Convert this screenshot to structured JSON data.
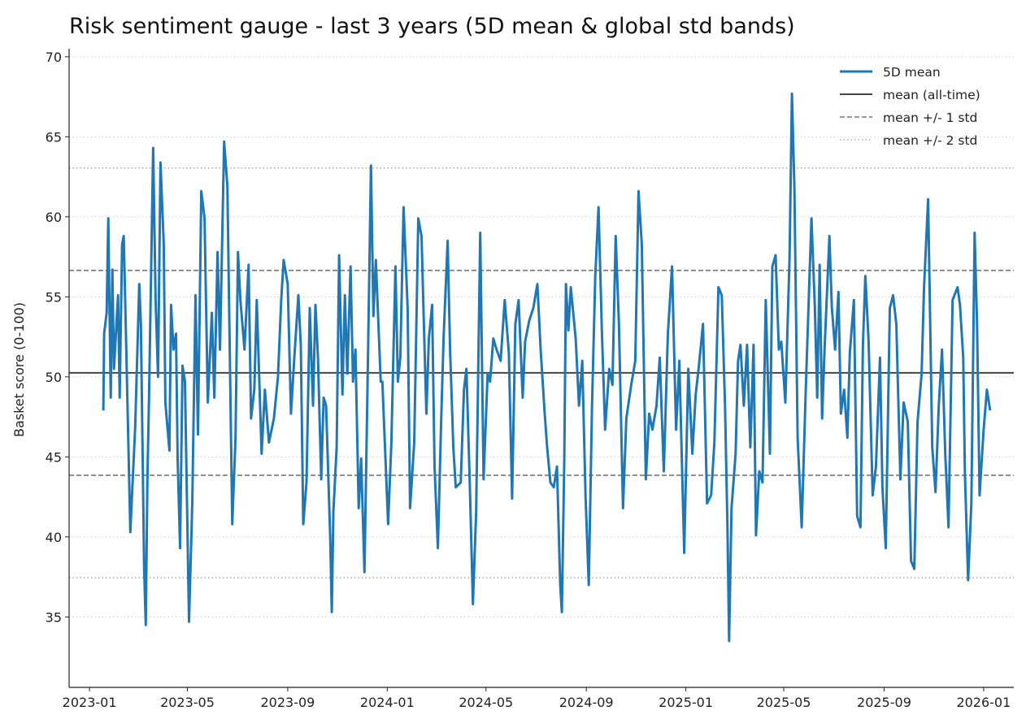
{
  "chart_data": {
    "type": "line",
    "title": "Risk sentiment gauge - last 3 years (5D mean & global std bands)",
    "xlabel": "",
    "ylabel": "Basket score (0-100)",
    "ylim": [
      30.6,
      70.5
    ],
    "xlim": [
      "2022-12-07",
      "2026-02-07"
    ],
    "yticks": [
      35,
      40,
      45,
      50,
      55,
      60,
      65,
      70
    ],
    "ytick_labels": [
      "35",
      "40",
      "45",
      "50",
      "55",
      "60",
      "65",
      "70"
    ],
    "xticks": [
      "2023-01-01",
      "2023-05-01",
      "2023-09-01",
      "2024-01-01",
      "2024-05-01",
      "2024-09-01",
      "2025-01-01",
      "2025-05-01",
      "2025-09-01",
      "2026-01-01"
    ],
    "xtick_labels": [
      "2023-01",
      "2023-05",
      "2023-09",
      "2024-01",
      "2024-05",
      "2024-09",
      "2025-01",
      "2025-05",
      "2025-09",
      "2026-01"
    ],
    "grid": "y-only dotted",
    "legend": "top-right",
    "legend_entries": [
      "5D mean",
      "mean (all-time)",
      "mean +/- 1 std",
      "mean +/- 2 std"
    ],
    "reference_lines": {
      "mean": 50.25,
      "std": 6.4
    },
    "colors": {
      "series": "#1f77b4",
      "mean": "#444444",
      "std1": "#777777",
      "std2": "#aaaaaa",
      "grid": "#cccccc"
    },
    "series": [
      {
        "name": "5D mean",
        "x": [
          "2023-01-18",
          "2023-01-19",
          "2023-01-22",
          "2023-01-24",
          "2023-01-27",
          "2023-01-29",
          "2023-01-31",
          "2023-02-03",
          "2023-02-05",
          "2023-02-07",
          "2023-02-10",
          "2023-02-12",
          "2023-02-14",
          "2023-02-20",
          "2023-02-26",
          "2023-03-03",
          "2023-03-05",
          "2023-03-09",
          "2023-03-11",
          "2023-03-13",
          "2023-03-15",
          "2023-03-20",
          "2023-03-23",
          "2023-03-26",
          "2023-03-29",
          "2023-04-02",
          "2023-04-04",
          "2023-04-09",
          "2023-04-11",
          "2023-04-14",
          "2023-04-17",
          "2023-04-19",
          "2023-04-22",
          "2023-04-25",
          "2023-04-28",
          "2023-05-03",
          "2023-05-07",
          "2023-05-11",
          "2023-05-14",
          "2023-05-18",
          "2023-05-22",
          "2023-05-26",
          "2023-05-31",
          "2023-06-03",
          "2023-06-07",
          "2023-06-10",
          "2023-06-15",
          "2023-06-19",
          "2023-06-25",
          "2023-06-29",
          "2023-07-02",
          "2023-07-05",
          "2023-07-10",
          "2023-07-15",
          "2023-07-18",
          "2023-07-22",
          "2023-07-25",
          "2023-07-31",
          "2023-08-04",
          "2023-08-09",
          "2023-08-15",
          "2023-08-20",
          "2023-08-24",
          "2023-08-27",
          "2023-09-01",
          "2023-09-05",
          "2023-09-09",
          "2023-09-14",
          "2023-09-17",
          "2023-09-20",
          "2023-09-24",
          "2023-09-28",
          "2023-10-02",
          "2023-10-05",
          "2023-10-08",
          "2023-10-12",
          "2023-10-15",
          "2023-10-18",
          "2023-10-23",
          "2023-10-25",
          "2023-10-27",
          "2023-10-31",
          "2023-11-03",
          "2023-11-07",
          "2023-11-10",
          "2023-11-13",
          "2023-11-17",
          "2023-11-20",
          "2023-11-23",
          "2023-11-27",
          "2023-11-30",
          "2023-12-04",
          "2023-12-08",
          "2023-12-12",
          "2023-12-15",
          "2023-12-18",
          "2023-12-24",
          "2023-12-26",
          "2024-01-02",
          "2024-01-06",
          "2024-01-11",
          "2024-01-14",
          "2024-01-17",
          "2024-01-21",
          "2024-01-26",
          "2024-01-29",
          "2024-02-03",
          "2024-02-08",
          "2024-02-12",
          "2024-02-16",
          "2024-02-18",
          "2024-02-21",
          "2024-02-25",
          "2024-02-28",
          "2024-03-03",
          "2024-03-07",
          "2024-03-10",
          "2024-03-15",
          "2024-03-18",
          "2024-03-22",
          "2024-03-25",
          "2024-03-31",
          "2024-04-04",
          "2024-04-07",
          "2024-04-11",
          "2024-04-15",
          "2024-04-19",
          "2024-04-24",
          "2024-04-28",
          "2024-05-03",
          "2024-05-06",
          "2024-05-10",
          "2024-05-14",
          "2024-05-19",
          "2024-05-24",
          "2024-05-29",
          "2024-06-02",
          "2024-06-06",
          "2024-06-10",
          "2024-06-15",
          "2024-06-18",
          "2024-06-23",
          "2024-06-28",
          "2024-07-03",
          "2024-07-07",
          "2024-07-12",
          "2024-07-15",
          "2024-07-19",
          "2024-07-23",
          "2024-07-27",
          "2024-07-31",
          "2024-08-02",
          "2024-08-05",
          "2024-08-07",
          "2024-08-10",
          "2024-08-13",
          "2024-08-19",
          "2024-08-23",
          "2024-08-27",
          "2024-08-31",
          "2024-09-04",
          "2024-09-08",
          "2024-09-12",
          "2024-09-16",
          "2024-09-20",
          "2024-09-24",
          "2024-09-29",
          "2024-10-03",
          "2024-10-07",
          "2024-10-11",
          "2024-10-16",
          "2024-10-20",
          "2024-10-26",
          "2024-10-31",
          "2024-11-04",
          "2024-11-08",
          "2024-11-13",
          "2024-11-17",
          "2024-11-21",
          "2024-11-26",
          "2024-11-30",
          "2024-12-05",
          "2024-12-10",
          "2024-12-15",
          "2024-12-20",
          "2024-12-24",
          "2024-12-30",
          "2025-01-04",
          "2025-01-09",
          "2025-01-13",
          "2025-01-17",
          "2025-01-22",
          "2025-01-27",
          "2025-02-01",
          "2025-02-05",
          "2025-02-10",
          "2025-02-14",
          "2025-02-18",
          "2025-02-21",
          "2025-02-23",
          "2025-02-26",
          "2025-03-03",
          "2025-03-06",
          "2025-03-09",
          "2025-03-13",
          "2025-03-17",
          "2025-03-21",
          "2025-03-25",
          "2025-03-28",
          "2025-04-01",
          "2025-04-05",
          "2025-04-09",
          "2025-04-14",
          "2025-04-17",
          "2025-04-21",
          "2025-04-25",
          "2025-04-28",
          "2025-05-03",
          "2025-05-08",
          "2025-05-11",
          "2025-05-14",
          "2025-05-18",
          "2025-05-23",
          "2025-05-28",
          "2025-06-04",
          "2025-06-08",
          "2025-06-11",
          "2025-06-14",
          "2025-06-17",
          "2025-06-20",
          "2025-06-26",
          "2025-06-29",
          "2025-07-03",
          "2025-07-07",
          "2025-07-10",
          "2025-07-14",
          "2025-07-18",
          "2025-07-21",
          "2025-07-26",
          "2025-07-30",
          "2025-08-03",
          "2025-08-06",
          "2025-08-09",
          "2025-08-13",
          "2025-08-18",
          "2025-08-22",
          "2025-08-27",
          "2025-08-30",
          "2025-09-03",
          "2025-09-08",
          "2025-09-12",
          "2025-09-16",
          "2025-09-21",
          "2025-09-25",
          "2025-09-30",
          "2025-10-04",
          "2025-10-08",
          "2025-10-12",
          "2025-10-17",
          "2025-10-20",
          "2025-10-25",
          "2025-10-30",
          "2025-11-03",
          "2025-11-07",
          "2025-11-11",
          "2025-11-15",
          "2025-11-19",
          "2025-11-24",
          "2025-11-30",
          "2025-12-03",
          "2025-12-07",
          "2025-12-09",
          "2025-12-13",
          "2025-12-17",
          "2025-12-21",
          "2025-12-24",
          "2025-12-27",
          "2026-01-01",
          "2026-01-05",
          "2026-01-09"
        ],
        "y": [
          47.9,
          52.7,
          54.0,
          59.9,
          48.7,
          56.7,
          50.5,
          53.3,
          55.1,
          48.7,
          58.3,
          58.8,
          54.3,
          40.3,
          46.9,
          55.8,
          53.3,
          38.0,
          34.5,
          43.6,
          48.7,
          64.3,
          54.8,
          50.0,
          63.4,
          58.3,
          48.4,
          45.4,
          54.5,
          51.7,
          52.7,
          44.9,
          39.3,
          50.7,
          49.7,
          34.7,
          42.1,
          55.1,
          46.4,
          61.6,
          59.9,
          48.4,
          54.0,
          48.7,
          57.8,
          51.7,
          64.7,
          61.9,
          40.8,
          46.2,
          57.8,
          54.8,
          51.7,
          57.0,
          47.4,
          49.2,
          54.8,
          45.2,
          49.2,
          45.9,
          47.4,
          50.0,
          54.8,
          57.3,
          55.8,
          47.7,
          51.2,
          55.1,
          52.0,
          40.8,
          43.4,
          54.3,
          48.2,
          54.5,
          51.2,
          43.6,
          48.7,
          48.2,
          40.1,
          35.3,
          41.6,
          45.6,
          57.6,
          48.9,
          55.1,
          50.2,
          56.9,
          49.7,
          51.7,
          41.8,
          44.9,
          37.8,
          50.2,
          63.2,
          53.8,
          57.3,
          49.7,
          49.7,
          40.8,
          45.9,
          56.9,
          49.7,
          51.2,
          60.6,
          54.3,
          41.8,
          45.9,
          59.9,
          58.8,
          51.2,
          47.7,
          52.4,
          54.5,
          44.4,
          39.3,
          47.2,
          52.4,
          58.5,
          51.7,
          45.6,
          43.1,
          43.4,
          49.2,
          50.5,
          43.6,
          35.8,
          41.6,
          59.0,
          43.6,
          50.2,
          49.7,
          52.4,
          51.7,
          51.0,
          54.8,
          51.5,
          42.4,
          53.3,
          54.8,
          48.7,
          52.2,
          53.5,
          54.3,
          55.8,
          51.7,
          47.7,
          45.6,
          43.4,
          43.1,
          44.4,
          37.0,
          35.3,
          44.9,
          55.8,
          52.9,
          55.6,
          52.4,
          48.2,
          51.0,
          42.6,
          37.0,
          48.2,
          56.3,
          60.6,
          52.9,
          46.7,
          50.5,
          49.5,
          58.8,
          53.3,
          41.8,
          47.4,
          49.5,
          51.0,
          61.6,
          58.3,
          43.6,
          47.7,
          46.7,
          48.2,
          51.2,
          44.1,
          52.7,
          56.9,
          46.7,
          51.0,
          39.0,
          50.5,
          45.2,
          48.9,
          50.7,
          53.3,
          42.1,
          42.6,
          45.9,
          55.6,
          55.1,
          48.2,
          40.6,
          33.5,
          41.8,
          45.2,
          51.0,
          52.0,
          48.2,
          52.0,
          45.6,
          52.0,
          40.1,
          44.1,
          43.4,
          54.8,
          45.2,
          56.9,
          57.6,
          51.7,
          52.2,
          48.4,
          57.3,
          67.7,
          61.9,
          46.2,
          40.6,
          49.2,
          59.9,
          54.5,
          48.7,
          57.0,
          47.4,
          51.7,
          58.8,
          54.3,
          51.7,
          55.3,
          47.7,
          49.2,
          46.2,
          51.5,
          54.8,
          41.3,
          40.6,
          52.0,
          56.3,
          52.2,
          42.6,
          44.4,
          51.2,
          43.1,
          39.3,
          54.3,
          55.1,
          53.3,
          43.6,
          48.4,
          47.2,
          38.5,
          38.0,
          47.2,
          50.2,
          55.6,
          61.1,
          45.6,
          42.8,
          48.2,
          51.7,
          45.2,
          40.6,
          54.8,
          55.6,
          54.5,
          51.2,
          44.1,
          37.3,
          42.1,
          59.0,
          53.3,
          42.6,
          46.7,
          49.2,
          47.9
        ]
      }
    ]
  }
}
